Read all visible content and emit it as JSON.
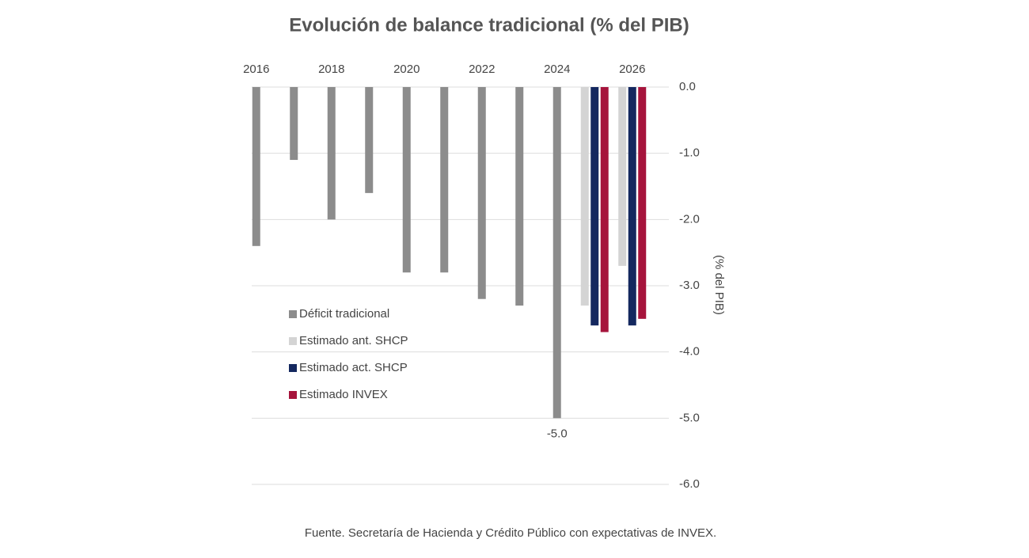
{
  "chart_data": {
    "type": "bar",
    "title": "Evolución de balance tradicional (% del PIB)",
    "y_label": "(% del PIB)",
    "source": "Fuente. Secretaría de Hacienda y Crédito Público con expectativas de INVEX.",
    "categories": [
      "2016",
      null,
      "2018",
      null,
      "2020",
      null,
      "2022",
      null,
      "2024",
      null,
      "2026"
    ],
    "series": [
      {
        "name": "Déficit tradicional",
        "color": "#8c8c8c",
        "values": [
          -2.4,
          -1.1,
          -2.0,
          -1.6,
          -2.8,
          -2.8,
          -3.2,
          -3.3,
          -5.0,
          null,
          null
        ],
        "value_labels": [
          null,
          null,
          null,
          null,
          null,
          null,
          null,
          null,
          "-5.0",
          null,
          null
        ]
      },
      {
        "name": "Estimado ant. SHCP",
        "color": "#d4d4d4",
        "values": [
          null,
          null,
          null,
          null,
          null,
          null,
          null,
          null,
          null,
          -3.3,
          -2.7
        ]
      },
      {
        "name": "Estimado act. SHCP",
        "color": "#14285f",
        "values": [
          null,
          null,
          null,
          null,
          null,
          null,
          null,
          null,
          null,
          -3.6,
          -3.6
        ]
      },
      {
        "name": "Estimado INVEX",
        "color": "#a6143c",
        "values": [
          null,
          null,
          null,
          null,
          null,
          null,
          null,
          null,
          null,
          -3.7,
          -3.5
        ]
      }
    ],
    "ylim": [
      -6,
      0
    ],
    "yticks": [
      {
        "value": 0,
        "label": "0.0"
      },
      {
        "value": -1,
        "label": "-1.0"
      },
      {
        "value": -2,
        "label": "-2.0"
      },
      {
        "value": -3,
        "label": "-3.0"
      },
      {
        "value": -4,
        "label": "-4.0"
      },
      {
        "value": -5,
        "label": "-5.0"
      },
      {
        "value": -6,
        "label": "-6.0"
      }
    ],
    "grid": true,
    "legend": "left"
  }
}
